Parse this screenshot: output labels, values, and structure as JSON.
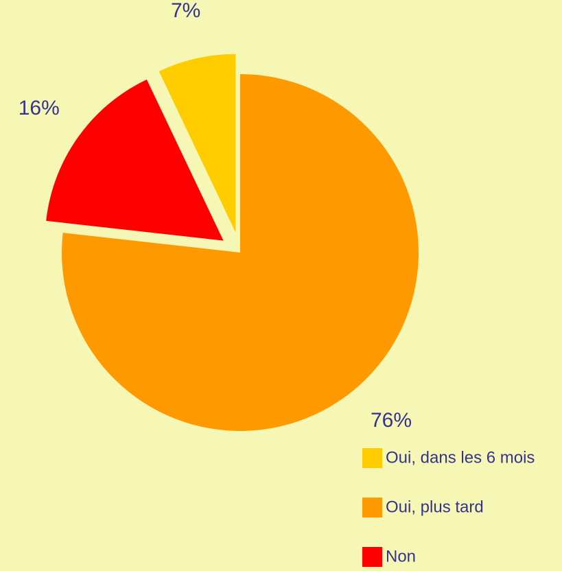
{
  "chart_data": {
    "type": "pie",
    "categories": [
      "Oui, dans les 6 mois",
      "Oui, plus tard",
      "Non"
    ],
    "values": [
      7,
      76,
      16
    ],
    "value_labels": [
      "7%",
      "76%",
      "16%"
    ],
    "colors": [
      "#ffcc00",
      "#ff9900",
      "#ff0000"
    ]
  }
}
